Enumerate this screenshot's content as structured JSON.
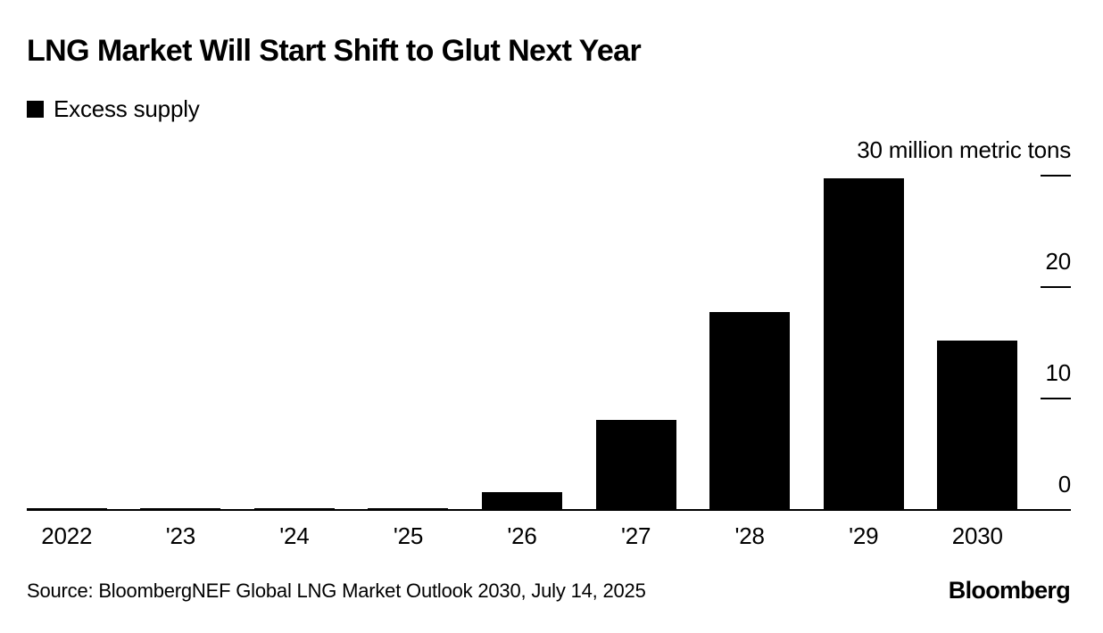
{
  "header": {
    "title": "LNG Market Will Start Shift to Glut Next Year"
  },
  "legend": {
    "label": "Excess supply",
    "swatch_color": "#000000"
  },
  "chart_data": {
    "type": "bar",
    "title": "LNG Market Will Start Shift to Glut Next Year",
    "series_name": "Excess supply",
    "categories": [
      "2022",
      "'23",
      "'24",
      "'25",
      "'26",
      "'27",
      "'28",
      "'29",
      "2030"
    ],
    "values": [
      0.2,
      0.2,
      0.2,
      0.2,
      1.7,
      8.2,
      17.8,
      29.8,
      15.3
    ],
    "unit": "million metric tons",
    "xlabel": "",
    "ylabel": "",
    "ylim": [
      0,
      30
    ],
    "y_axis": {
      "side": "right",
      "ticks": [
        0,
        10,
        20,
        30
      ],
      "top_tick_label": "30 million metric tons",
      "zero_label": "0"
    },
    "bar_color": "#000000",
    "background_color": "#ffffff",
    "grid": false,
    "legend_position": "top-left"
  },
  "footer": {
    "source": "Source: BloombergNEF Global LNG Market Outlook 2030, July 14, 2025",
    "logo": "Bloomberg"
  }
}
